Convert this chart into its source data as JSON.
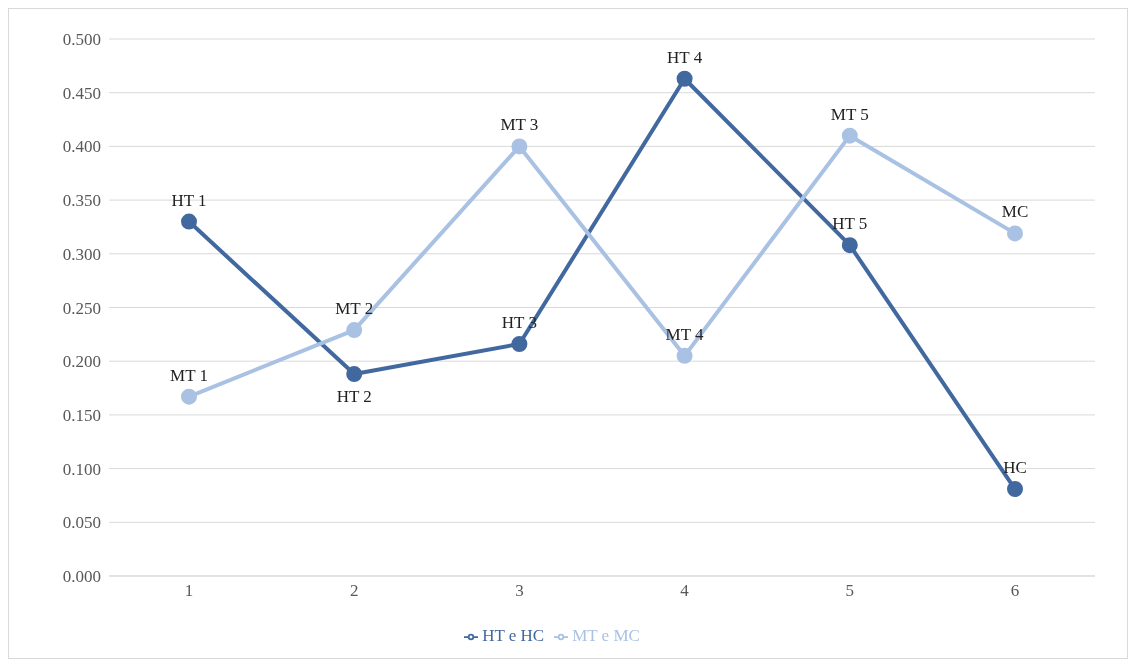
{
  "chart_data": {
    "type": "line",
    "categories": [
      "1",
      "2",
      "3",
      "4",
      "5",
      "6"
    ],
    "series": [
      {
        "name": "HT e HC",
        "color": "#41689f",
        "values": [
          0.33,
          0.188,
          0.216,
          0.463,
          0.308,
          0.081
        ]
      },
      {
        "name": "MT e MC",
        "color": "#a9c1e2",
        "values": [
          0.167,
          0.229,
          0.4,
          0.205,
          0.41,
          0.319
        ]
      }
    ],
    "ylim": [
      0,
      0.5
    ],
    "yticks": [
      {
        "value": 0,
        "label": "0.000"
      },
      {
        "value": 0.05,
        "label": "0.050"
      },
      {
        "value": 0.1,
        "label": "0.100"
      },
      {
        "value": 0.15,
        "label": "0.150"
      },
      {
        "value": 0.2,
        "label": "0.200"
      },
      {
        "value": 0.25,
        "label": "0.250"
      },
      {
        "value": 0.3,
        "label": "0.300"
      },
      {
        "value": 0.35,
        "label": "0.350"
      },
      {
        "value": 0.4,
        "label": "0.400"
      },
      {
        "value": 0.45,
        "label": "0.450"
      },
      {
        "value": 0.5,
        "label": "0.500"
      }
    ],
    "annotations": [
      {
        "text": "HT 1",
        "x": "1",
        "y": 0.33
      },
      {
        "text": "HT 2",
        "x": "2",
        "y": 0.188
      },
      {
        "text": "HT 3",
        "x": "3",
        "y": 0.216
      },
      {
        "text": "HT 4",
        "x": "4",
        "y": 0.463
      },
      {
        "text": "HT 5",
        "x": "5",
        "y": 0.308
      },
      {
        "text": "HC",
        "x": "6",
        "y": 0.081
      },
      {
        "text": "MT 1",
        "x": "1",
        "y": 0.167
      },
      {
        "text": "MT 2",
        "x": "2",
        "y": 0.229
      },
      {
        "text": "MT 3",
        "x": "3",
        "y": 0.4
      },
      {
        "text": "MT 4",
        "x": "4",
        "y": 0.205
      },
      {
        "text": "MT 5",
        "x": "5",
        "y": 0.41
      },
      {
        "text": "MC",
        "x": "6",
        "y": 0.319
      }
    ],
    "grid": "y",
    "legend": "bottom",
    "marker": "circle",
    "line_style": "solid"
  }
}
